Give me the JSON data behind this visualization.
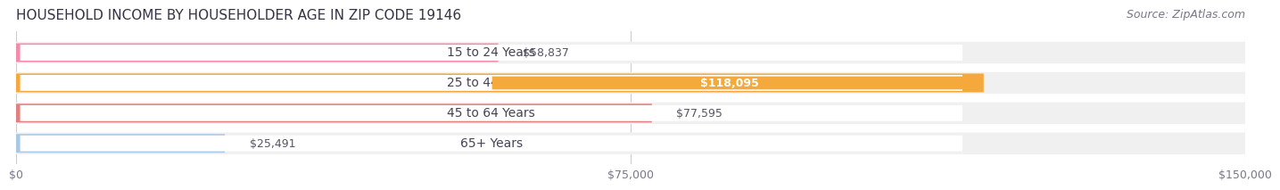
{
  "title": "HOUSEHOLD INCOME BY HOUSEHOLDER AGE IN ZIP CODE 19146",
  "source": "Source: ZipAtlas.com",
  "categories": [
    "15 to 24 Years",
    "25 to 44 Years",
    "45 to 64 Years",
    "65+ Years"
  ],
  "values": [
    58837,
    118095,
    77595,
    25491
  ],
  "bar_colors": [
    "#F48BAB",
    "#F5A83C",
    "#E08080",
    "#A8C8E8"
  ],
  "label_colors": [
    "#555566",
    "#555566",
    "#555566",
    "#555566"
  ],
  "value_labels": [
    "$58,837",
    "$118,095",
    "$77,595",
    "$25,491"
  ],
  "value_label_colors": [
    "#555566",
    "#ffffff",
    "#555566",
    "#555566"
  ],
  "bg_track_color": "#F0F0F0",
  "xlim": [
    0,
    150000
  ],
  "xticks": [
    0,
    75000,
    150000
  ],
  "xtick_labels": [
    "$0",
    "$75,000",
    "$150,000"
  ],
  "title_fontsize": 11,
  "source_fontsize": 9,
  "label_fontsize": 10,
  "value_fontsize": 9,
  "background_color": "#ffffff"
}
